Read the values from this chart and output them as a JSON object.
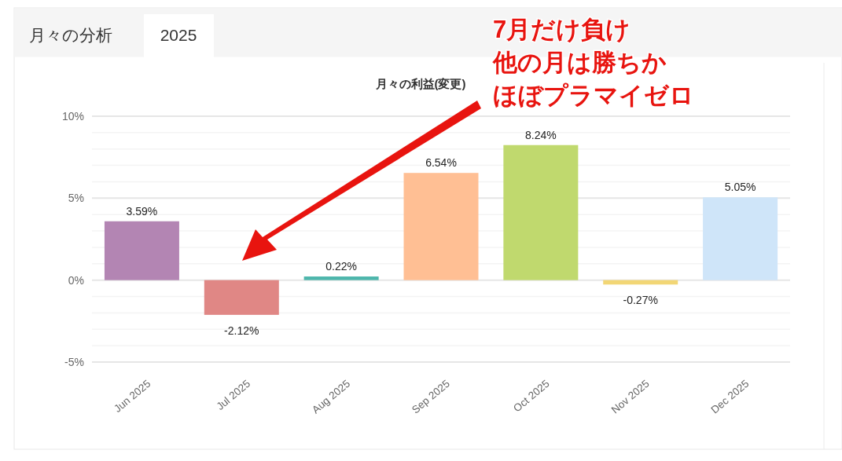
{
  "chart_data": {
    "type": "bar",
    "title": "月々の利益(変更)",
    "categories": [
      "Jun 2025",
      "Jul 2025",
      "Aug 2025",
      "Sep 2025",
      "Oct 2025",
      "Nov 2025",
      "Dec 2025"
    ],
    "values": [
      3.59,
      -2.12,
      0.22,
      6.54,
      8.24,
      -0.27,
      5.05
    ],
    "value_labels": [
      "3.59%",
      "-2.12%",
      "0.22%",
      "6.54%",
      "8.24%",
      "-0.27%",
      "5.05%"
    ],
    "colors": [
      "#b385b3",
      "#e08785",
      "#4db6ac",
      "#ffbf94",
      "#c0d96e",
      "#f2d675",
      "#cfe5f9"
    ],
    "ylim": [
      -5,
      10
    ],
    "yticks": [
      {
        "value": -5,
        "label": "-5%"
      },
      {
        "value": -4,
        "label": null
      },
      {
        "value": -3,
        "label": null
      },
      {
        "value": -2,
        "label": null
      },
      {
        "value": -1,
        "label": null
      },
      {
        "value": 0,
        "label": "0%"
      },
      {
        "value": 1,
        "label": null
      },
      {
        "value": 2,
        "label": null
      },
      {
        "value": 3,
        "label": null
      },
      {
        "value": 4,
        "label": null
      },
      {
        "value": 5,
        "label": "5%"
      },
      {
        "value": 6,
        "label": null
      },
      {
        "value": 7,
        "label": null
      },
      {
        "value": 8,
        "label": null
      },
      {
        "value": 9,
        "label": null
      },
      {
        "value": 10,
        "label": "10%"
      }
    ],
    "grid": true,
    "annotations": [
      "月々の分析",
      "2025",
      "7月だけ負け",
      "他の月は勝ちか",
      "ほぼプラマイゼロ"
    ]
  }
}
